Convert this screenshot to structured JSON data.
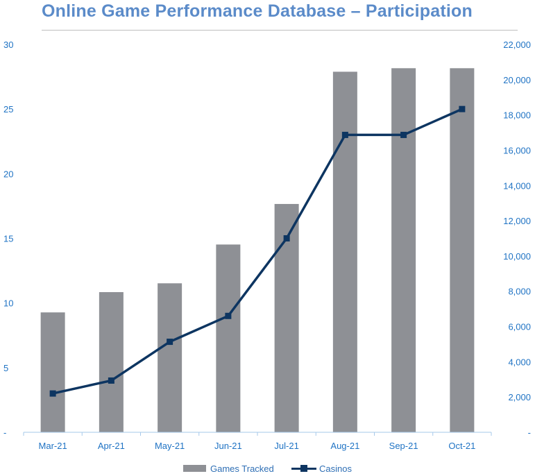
{
  "chart_data": {
    "type": "bar",
    "title": "Online Game Performance Database – Participation",
    "categories": [
      "Mar-21",
      "Apr-21",
      "May-21",
      "Jun-21",
      "Jul-21",
      "Aug-21",
      "Sep-21",
      "Oct-21"
    ],
    "series": [
      {
        "name": "Games Tracked",
        "type": "bar",
        "axis": "right",
        "color": "#8e9095",
        "values": [
          6800,
          7950,
          8450,
          10650,
          12950,
          20450,
          20650,
          20650
        ]
      },
      {
        "name": "Casinos",
        "type": "line",
        "axis": "left",
        "color": "#0d3561",
        "marker": "square",
        "values": [
          3,
          4,
          7,
          9,
          15,
          23,
          23,
          25
        ]
      }
    ],
    "left_axis": {
      "ylim": [
        0,
        30
      ],
      "ticks": [
        0,
        5,
        10,
        15,
        20,
        25,
        30
      ],
      "tick_labels": [
        "-",
        "5",
        "10",
        "15",
        "20",
        "25",
        "30"
      ]
    },
    "right_axis": {
      "ylim": [
        0,
        22000
      ],
      "ticks": [
        0,
        2000,
        4000,
        6000,
        8000,
        10000,
        12000,
        14000,
        16000,
        18000,
        20000,
        22000
      ],
      "tick_labels": [
        "-",
        "2,000",
        "4,000",
        "6,000",
        "8,000",
        "10,000",
        "12,000",
        "14,000",
        "16,000",
        "18,000",
        "20,000",
        "22,000"
      ]
    },
    "grid": false,
    "legend_position": "bottom",
    "tick_color": "#1f73c4",
    "axis_line_color": "#a6c8ea"
  }
}
